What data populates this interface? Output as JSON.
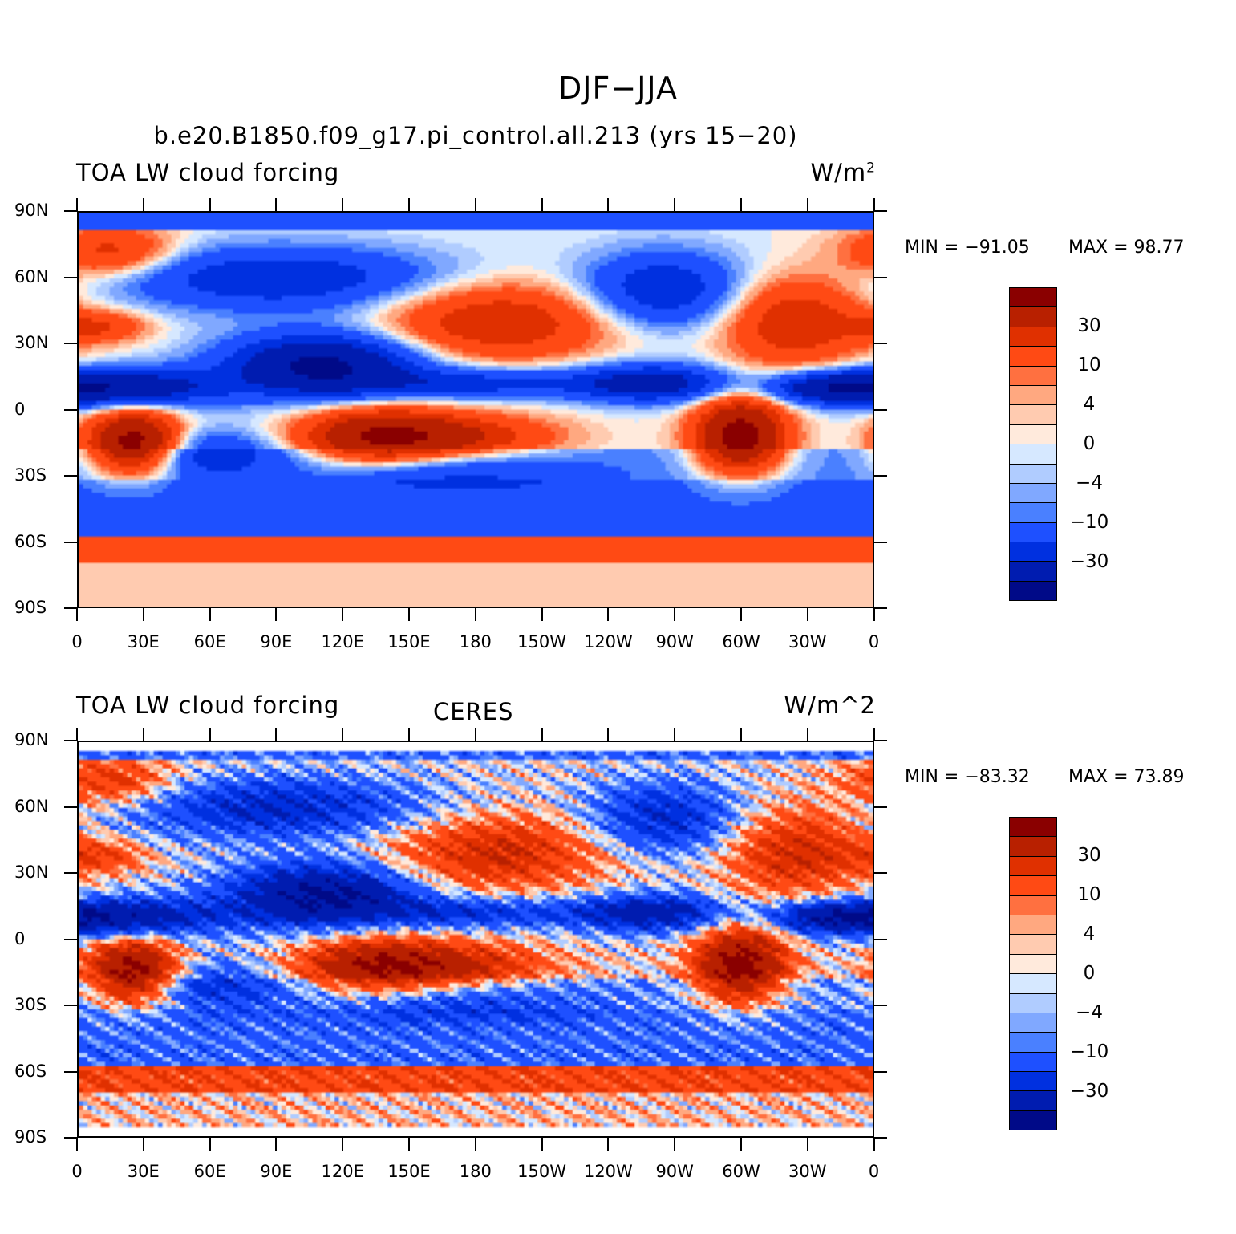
{
  "title": "DJF−JJA",
  "panels": [
    {
      "left": "TOA LW cloud forcing",
      "center": "b.e20.B1850.f09_g17.pi_control.all.213 (yrs 15−20)",
      "right": "W/m",
      "right_sup": "2",
      "min_label": "MIN = −91.05",
      "max_label": "MAX =  98.77",
      "min": -91.05,
      "max": 98.77
    },
    {
      "left": "TOA LW cloud forcing",
      "center": "CERES",
      "right": "W/m^2",
      "right_sup": "",
      "min_label": "MIN = −83.32",
      "max_label": "MAX =  73.89",
      "min": -83.32,
      "max": 73.89
    }
  ],
  "lat_labels": [
    "90N",
    "60N",
    "30N",
    "0",
    "30S",
    "60S",
    "90S"
  ],
  "lon_labels": [
    "0",
    "30E",
    "60E",
    "90E",
    "120E",
    "150E",
    "180",
    "150W",
    "120W",
    "90W",
    "60W",
    "30W",
    "0"
  ],
  "colorbar": {
    "labels": [
      "30",
      "10",
      "4",
      "0",
      "−4",
      "−10",
      "−30"
    ],
    "colors": [
      "#8a0000",
      "#b82000",
      "#e03000",
      "#ff4a14",
      "#ff7040",
      "#ffa880",
      "#ffcbb0",
      "#ffeadc",
      "#d6e8ff",
      "#b0ccff",
      "#80a8ff",
      "#4a80ff",
      "#1e50ff",
      "#0030e0",
      "#001cb0",
      "#000a88"
    ]
  }
}
